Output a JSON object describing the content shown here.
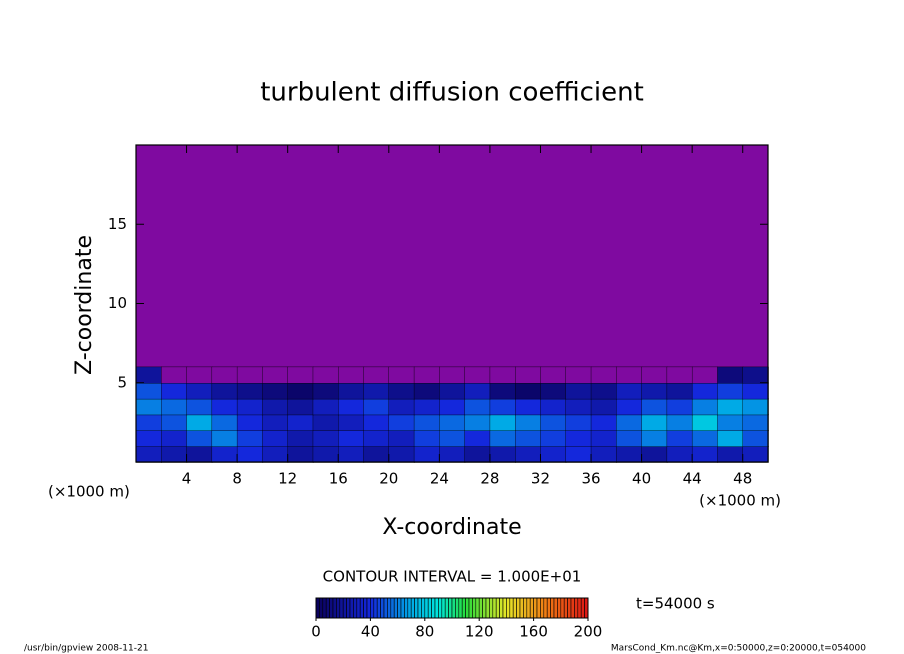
{
  "chart_data": {
    "type": "contour",
    "title": "turbulent diffusion coefficient",
    "x_label": "X-coordinate",
    "y_label": "Z-coordinate",
    "x_unit_left": "(×1000 m)",
    "x_unit_right": "(×1000 m)",
    "xlim": [
      0,
      50
    ],
    "ylim": [
      0,
      20
    ],
    "xticks": [
      4,
      8,
      12,
      16,
      20,
      24,
      28,
      32,
      36,
      40,
      44,
      48
    ],
    "yticks": [
      5,
      10,
      15
    ],
    "background_color": "#7f0aa0",
    "field": {
      "x": [
        1,
        3,
        5,
        7,
        9,
        11,
        13,
        15,
        17,
        19,
        21,
        23,
        25,
        27,
        29,
        31,
        33,
        35,
        37,
        39,
        41,
        43,
        45,
        47,
        49
      ],
      "z": [
        0.5,
        1.5,
        2.5,
        3.5,
        4.5,
        5.5
      ],
      "values": [
        [
          30,
          25,
          20,
          35,
          40,
          30,
          20,
          25,
          30,
          20,
          25,
          35,
          30,
          20,
          25,
          30,
          35,
          40,
          30,
          25,
          20,
          30,
          35,
          25,
          30
        ],
        [
          40,
          35,
          50,
          60,
          45,
          35,
          25,
          30,
          40,
          35,
          30,
          45,
          50,
          40,
          55,
          50,
          45,
          40,
          35,
          50,
          60,
          45,
          55,
          70,
          50
        ],
        [
          45,
          50,
          70,
          55,
          40,
          30,
          35,
          25,
          30,
          40,
          45,
          50,
          55,
          60,
          70,
          60,
          50,
          45,
          40,
          55,
          70,
          60,
          80,
          60,
          55
        ],
        [
          60,
          55,
          50,
          40,
          35,
          25,
          20,
          30,
          40,
          45,
          30,
          35,
          40,
          50,
          45,
          40,
          35,
          30,
          25,
          40,
          50,
          45,
          60,
          70,
          65
        ],
        [
          50,
          40,
          30,
          20,
          15,
          10,
          5,
          10,
          20,
          25,
          15,
          10,
          20,
          30,
          10,
          5,
          10,
          20,
          15,
          30,
          25,
          20,
          40,
          45,
          40
        ],
        [
          20,
          0,
          0,
          0,
          0,
          0,
          0,
          0,
          0,
          0,
          0,
          0,
          0,
          0,
          0,
          0,
          0,
          0,
          0,
          0,
          0,
          0,
          0,
          10,
          15
        ]
      ]
    },
    "contour_interval_text": "CONTOUR INTERVAL = 1.000E+01",
    "colorbar": {
      "lim": [
        0,
        200
      ],
      "ticks": [
        0,
        40,
        80,
        120,
        160,
        200
      ],
      "interval": 10
    },
    "time_label": "t=54000 s",
    "footer_left": "/usr/bin/gpview   2008-11-21",
    "footer_right": "MarsCond_Km.nc@Km,x=0:50000,z=0:20000,t=054000"
  }
}
